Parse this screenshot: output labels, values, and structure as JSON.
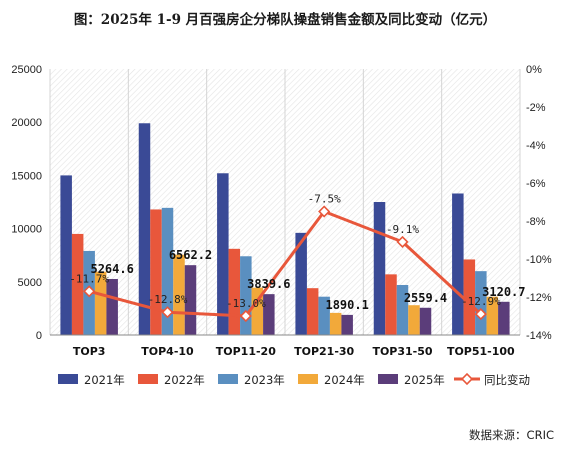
{
  "title": "图：2025年 1-9 月百强房企分梯队操盘销售金额及同比变动（亿元）",
  "source": "数据来源：CRIC",
  "chart_data": {
    "type": "bar",
    "title": "图：2025年 1-9 月百强房企分梯队操盘销售金额及同比变动（亿元）",
    "categories": [
      "TOP3",
      "TOP4-10",
      "TOP11-20",
      "TOP21-30",
      "TOP31-50",
      "TOP51-100"
    ],
    "series": [
      {
        "name": "2021年",
        "color": "#3a4a96",
        "values": [
          15000,
          19900,
          15200,
          9600,
          12500,
          13300
        ]
      },
      {
        "name": "2022年",
        "color": "#e8573b",
        "values": [
          9500,
          11800,
          8100,
          4400,
          5700,
          7100
        ]
      },
      {
        "name": "2023年",
        "color": "#5a8fc0",
        "values": [
          7900,
          11950,
          7400,
          3600,
          4700,
          6000
        ]
      },
      {
        "name": "2024年",
        "color": "#f2a93a",
        "values": [
          5950,
          7550,
          4450,
          2080,
          2800,
          3600
        ]
      },
      {
        "name": "2025年",
        "color": "#5b3d7a",
        "values": [
          5264.6,
          6562.2,
          3839.6,
          1890.1,
          2559.4,
          3120.7
        ]
      }
    ],
    "bar_value_labels": [
      "5264.6",
      "6562.2",
      "3839.6",
      "1890.1",
      "2559.4",
      "3120.7"
    ],
    "line": {
      "name": "同比变动",
      "color": "#e8573b",
      "values": [
        -11.7,
        -12.8,
        -13.0,
        -7.5,
        -9.1,
        -12.9
      ],
      "labels": [
        "-11.7%",
        "-12.8%",
        "-13.0%",
        "-7.5%",
        "-9.1%",
        "-12.9%"
      ]
    },
    "y_left": {
      "min": 0,
      "max": 25000,
      "ticks": [
        "0",
        "5000",
        "10000",
        "15000",
        "20000",
        "25000"
      ]
    },
    "y_right": {
      "min": -14,
      "max": 0,
      "ticks": [
        "0%",
        "-2%",
        "-4%",
        "-6%",
        "-8%",
        "-10%",
        "-12%",
        "-14%"
      ]
    },
    "grid": "vertical",
    "legend_position": "bottom"
  }
}
